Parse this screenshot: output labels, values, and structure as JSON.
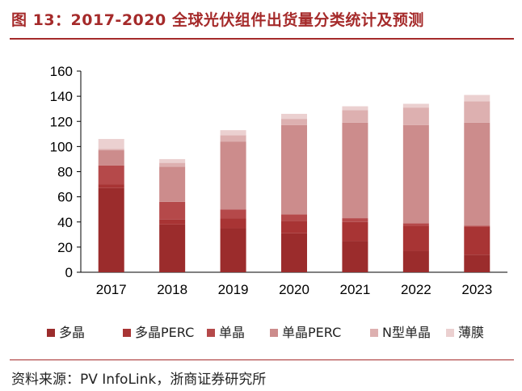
{
  "header": {
    "title": "图 13：2017-2020 全球光伏组件出货量分类统计及预测"
  },
  "footer": {
    "source": "资料来源：PV InfoLink，浙商证券研究所"
  },
  "chart_data": {
    "type": "bar",
    "stacked": true,
    "title": "图 13：2017-2020 全球光伏组件出货量分类统计及预测",
    "xlabel": "",
    "ylabel": "",
    "ylim": [
      0,
      160
    ],
    "yticks": [
      0,
      20,
      40,
      60,
      80,
      100,
      120,
      140,
      160
    ],
    "categories": [
      "2017",
      "2018",
      "2019",
      "2020",
      "2021",
      "2022",
      "2023"
    ],
    "series": [
      {
        "name": "多晶",
        "color": "#9b2c2c",
        "values": [
          67,
          38,
          35,
          31,
          25,
          17,
          14
        ]
      },
      {
        "name": "多晶PERC",
        "color": "#a83434",
        "values": [
          3,
          4,
          8,
          10,
          15,
          20,
          22
        ]
      },
      {
        "name": "单晶",
        "color": "#b5494a",
        "values": [
          15,
          14,
          7,
          5,
          3,
          2,
          1
        ]
      },
      {
        "name": "单晶PERC",
        "color": "#cc8c8c",
        "values": [
          12,
          28,
          54,
          71,
          76,
          78,
          82
        ]
      },
      {
        "name": "N型单晶",
        "color": "#ddb0b0",
        "values": [
          1,
          3,
          5,
          5,
          10,
          14,
          17
        ]
      },
      {
        "name": "薄膜",
        "color": "#ebd0d0",
        "values": [
          8,
          3,
          4,
          4,
          3,
          3,
          5
        ]
      }
    ],
    "legend_position": "bottom"
  }
}
